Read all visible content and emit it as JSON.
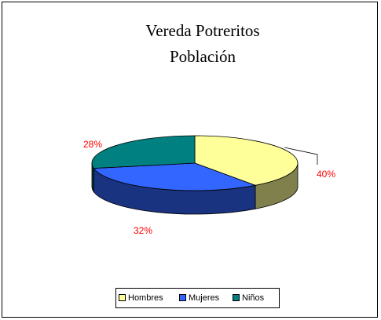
{
  "chart_data": {
    "type": "pie3d",
    "title": "Vereda Potreritos",
    "subtitle": "Población",
    "categories": [
      "Hombres",
      "Mujeres",
      "Niños"
    ],
    "values": [
      40,
      32,
      28
    ],
    "value_labels": [
      "40%",
      "32%",
      "28%"
    ],
    "colors": [
      "#FFFF99",
      "#3366FF",
      "#008080"
    ],
    "legend": "bottom"
  }
}
